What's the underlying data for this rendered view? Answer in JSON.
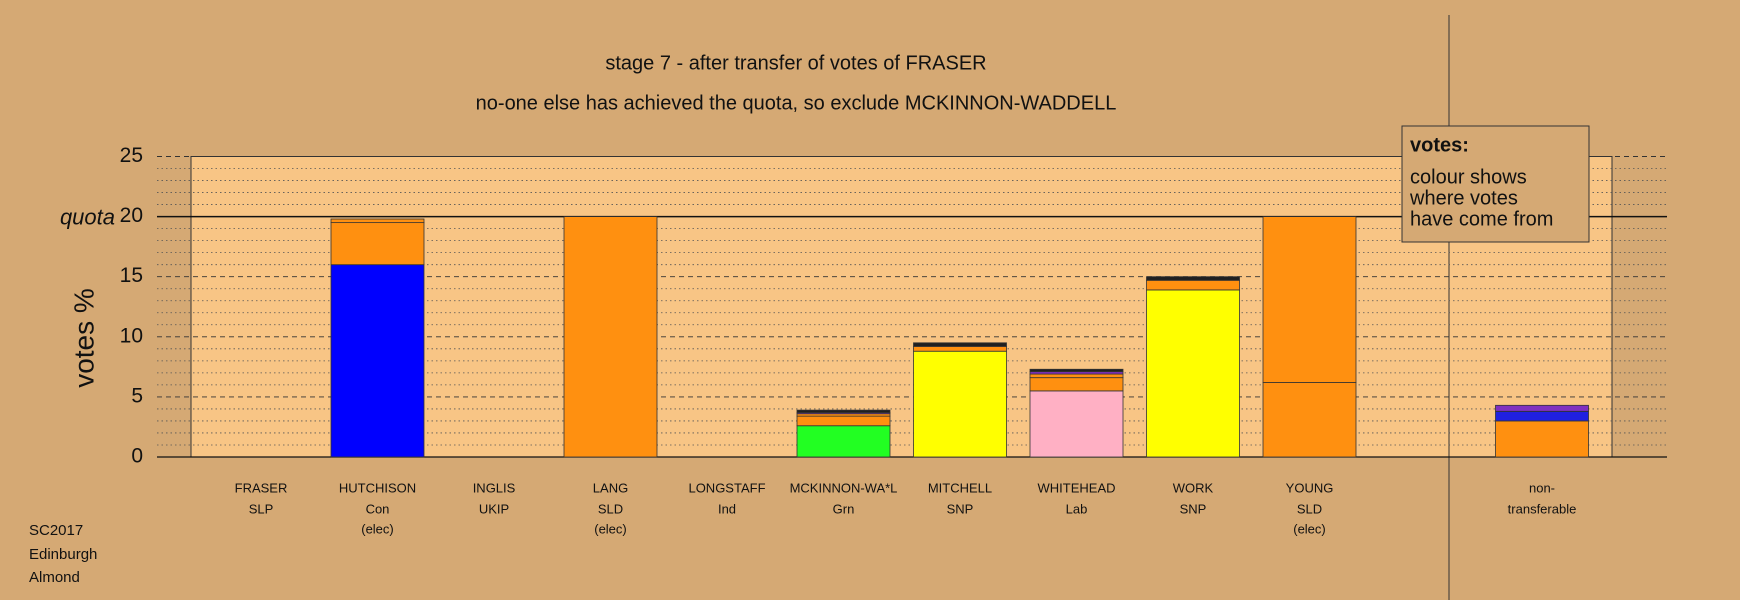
{
  "chart_data": {
    "type": "bar",
    "stacked": true,
    "title": "stage 7 - after transfer of votes of FRASER",
    "subtitle": "no-one else has achieved the quota, so exclude MCKINNON-WADDELL",
    "y_label": "votes %",
    "categories": [
      "FRASER",
      "HUTCHISON",
      "INGLIS",
      "LANG",
      "LONGSTAFF",
      "MCKINNON-WA*L",
      "MITCHELL",
      "WHITEHEAD",
      "WORK",
      "YOUNG",
      "non-"
    ],
    "parties": [
      "SLP",
      "Con",
      "UKIP",
      "SLD",
      "Ind",
      "Grn",
      "SNP",
      "Lab",
      "SNP",
      "SLD",
      "transferable"
    ],
    "notes": [
      null,
      "(elec)",
      null,
      "(elec)",
      null,
      null,
      null,
      null,
      null,
      "(elec)",
      null
    ],
    "series": [
      {
        "color": "#0000ff",
        "values": [
          null,
          16,
          null,
          null,
          null,
          null,
          null,
          null,
          null,
          null,
          null
        ]
      },
      {
        "color": "#ffb0c4",
        "values": [
          null,
          null,
          null,
          null,
          null,
          null,
          null,
          5.5,
          null,
          null,
          null
        ]
      },
      {
        "color": "#22ff22",
        "values": [
          null,
          null,
          null,
          null,
          null,
          2.6,
          null,
          null,
          null,
          null,
          null
        ]
      },
      {
        "color": "#ffff00",
        "values": [
          null,
          null,
          null,
          null,
          null,
          null,
          8.8,
          null,
          13.9,
          null,
          null
        ]
      },
      {
        "color": "#ff9010",
        "values": [
          null,
          3.5,
          null,
          20,
          null,
          0.8,
          0.4,
          1.1,
          0.8,
          6.2,
          3.0
        ]
      },
      {
        "color": "#ff9010",
        "values": [
          null,
          0.3,
          null,
          null,
          null,
          0.2,
          null,
          0.3,
          null,
          13.8,
          null
        ]
      },
      {
        "color": "#2020e0",
        "values": [
          null,
          null,
          null,
          null,
          null,
          null,
          null,
          null,
          null,
          null,
          0.8
        ]
      },
      {
        "color": "#8030c0",
        "values": [
          null,
          null,
          null,
          null,
          null,
          0.1,
          null,
          0.2,
          null,
          null,
          0.5
        ]
      },
      {
        "color": "#202020",
        "values": [
          null,
          null,
          null,
          null,
          null,
          0.2,
          0.3,
          0.2,
          0.3,
          null,
          null
        ]
      }
    ],
    "ylim": [
      0,
      25
    ],
    "yticks": [
      0,
      5,
      10,
      15,
      20,
      25
    ],
    "minor_yticks": [
      1,
      2,
      3,
      4,
      6,
      7,
      8,
      9,
      11,
      12,
      13,
      14,
      16,
      17,
      18,
      19,
      21,
      22,
      23,
      24
    ],
    "quota": {
      "value": 20,
      "label": "quota"
    },
    "legend": {
      "title": "votes:",
      "lines": [
        "colour shows",
        "where votes",
        "have come from"
      ]
    },
    "footer": [
      "SC2017",
      "Edinburgh",
      "Almond"
    ]
  }
}
